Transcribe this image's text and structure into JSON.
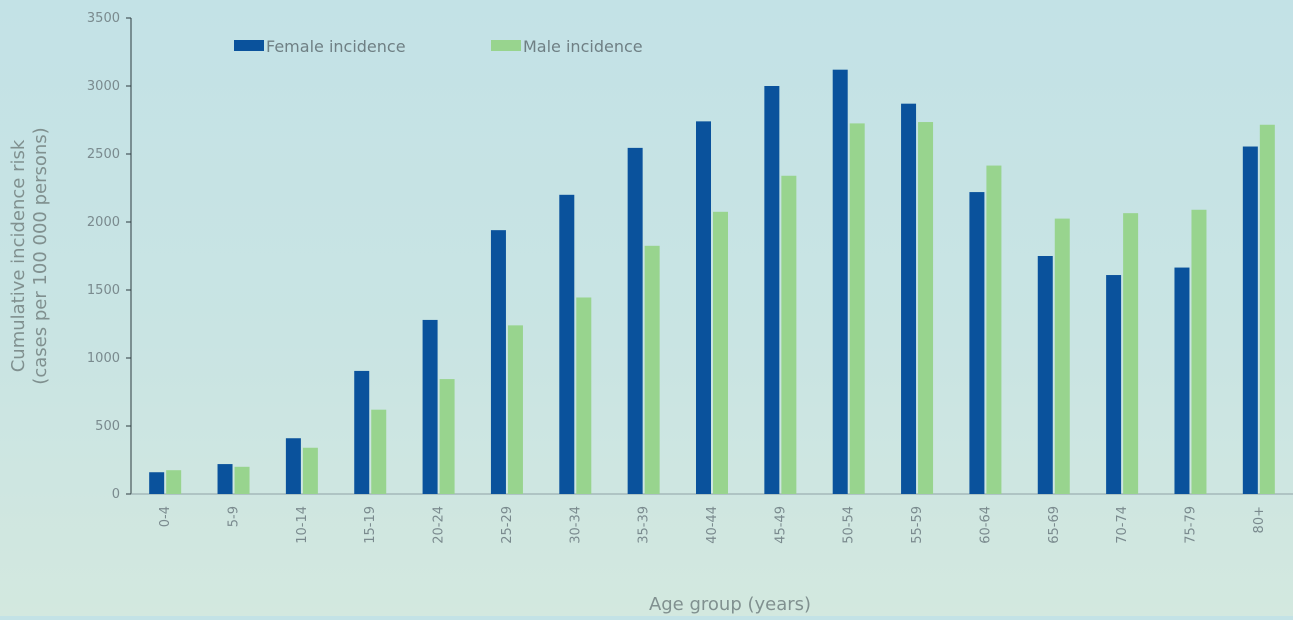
{
  "chart_data": {
    "type": "bar",
    "title": "",
    "xlabel": "Age group (years)",
    "ylabel_line1": "Cumulative incidence risk",
    "ylabel_line2": "(cases per 100 000 persons)",
    "ylim": [
      0,
      3500
    ],
    "yticks": [
      0,
      500,
      1000,
      1500,
      2000,
      2500,
      3000,
      3500
    ],
    "grid": false,
    "legend_position": "top-left",
    "categories": [
      "0-4",
      "5-9",
      "10-14",
      "15-19",
      "20-24",
      "25-29",
      "30-34",
      "35-39",
      "40-44",
      "45-49",
      "50-54",
      "55-59",
      "60-64",
      "65-69",
      "70-74",
      "75-79",
      "80+"
    ],
    "series": [
      {
        "name": "Female incidence",
        "color": "#0a529c",
        "values": [
          160,
          220,
          410,
          905,
          1280,
          1940,
          2200,
          2545,
          2740,
          3000,
          3120,
          2870,
          2220,
          1750,
          1610,
          1665,
          2555
        ]
      },
      {
        "name": "Male incidence",
        "color": "#98d48e",
        "values": [
          175,
          200,
          340,
          620,
          845,
          1240,
          1445,
          1825,
          2075,
          2340,
          2725,
          2735,
          2415,
          2025,
          2065,
          2090,
          2715
        ]
      }
    ]
  }
}
